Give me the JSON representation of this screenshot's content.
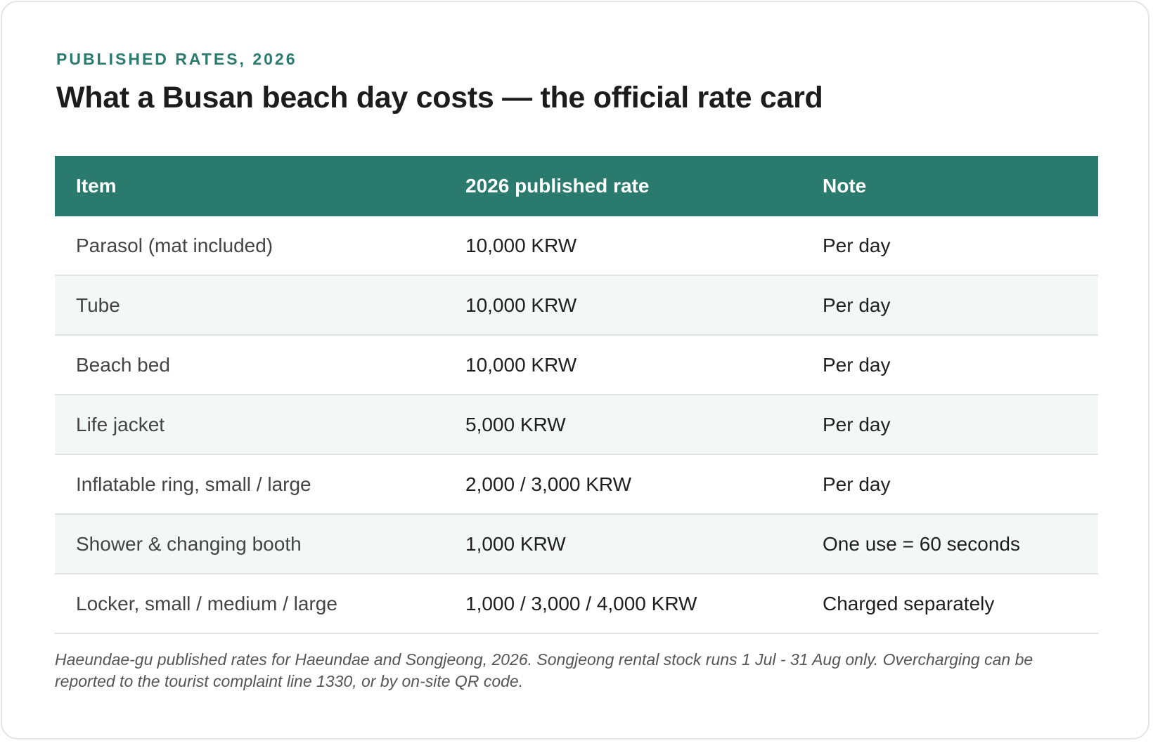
{
  "eyebrow": "PUBLISHED RATES, 2026",
  "title": "What a Busan beach day costs — the official rate card",
  "table": {
    "headers": {
      "item": "Item",
      "rate": "2026 published rate",
      "note": "Note"
    },
    "rows": [
      {
        "item": "Parasol (mat included)",
        "rate": "10,000 KRW",
        "note": "Per day"
      },
      {
        "item": "Tube",
        "rate": "10,000 KRW",
        "note": "Per day"
      },
      {
        "item": "Beach bed",
        "rate": "10,000 KRW",
        "note": "Per day"
      },
      {
        "item": "Life jacket",
        "rate": "5,000 KRW",
        "note": "Per day"
      },
      {
        "item": "Inflatable ring, small / large",
        "rate": "2,000 / 3,000 KRW",
        "note": "Per day"
      },
      {
        "item": "Shower & changing booth",
        "rate": "1,000 KRW",
        "note": "One use = 60 seconds"
      },
      {
        "item": "Locker, small / medium / large",
        "rate": "1,000 / 3,000 / 4,000 KRW",
        "note": "Charged separately"
      }
    ]
  },
  "footnote": "Haeundae-gu published rates for Haeundae and Songjeong, 2026. Songjeong rental stock runs 1 Jul - 31 Aug only. Overcharging can be reported to the tourist complaint line 1330, or by on-site QR code.",
  "colors": {
    "accent": "#2b7a6e",
    "stripe": "#f3f7f6",
    "divider": "#dfe3e2"
  }
}
